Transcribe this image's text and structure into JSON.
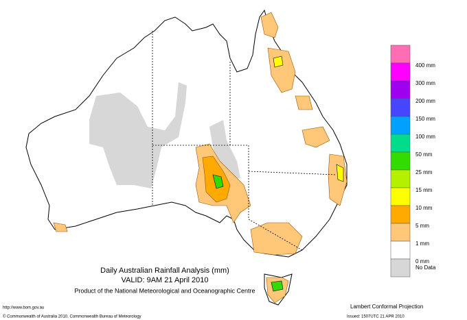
{
  "title": "Daily Australian Rainfall Analysis (mm)",
  "valid": "VALID: 9AM 21 April 2010",
  "product": "Product of the National Meteorological and Oceanographic Centre",
  "url": "http://www.bom.gov.au",
  "copyright": "© Commonwealth of Australia 2010, Commonwealth Bureau of Meteorology",
  "projection": "Lambert Conformal Projection",
  "issued": "Issued: 1507UTC 21 APR 2010",
  "legend": [
    {
      "label": "400 mm",
      "color": "#ff6eb4"
    },
    {
      "label": "300 mm",
      "color": "#ff00ff"
    },
    {
      "label": "200 mm",
      "color": "#a000f0"
    },
    {
      "label": "150 mm",
      "color": "#4646ff"
    },
    {
      "label": "100 mm",
      "color": "#00a0ff"
    },
    {
      "label": "50 mm",
      "color": "#00dc8c"
    },
    {
      "label": "25 mm",
      "color": "#32dc00"
    },
    {
      "label": "15 mm",
      "color": "#b4f000"
    },
    {
      "label": "10 mm",
      "color": "#ffff00"
    },
    {
      "label": "5 mm",
      "color": "#ffaa00"
    },
    {
      "label": "1 mm",
      "color": "#ffc878"
    },
    {
      "label": "0 mm",
      "color": "#ffffff"
    },
    {
      "label": "No Data",
      "color": "#d7d7d7"
    }
  ]
}
